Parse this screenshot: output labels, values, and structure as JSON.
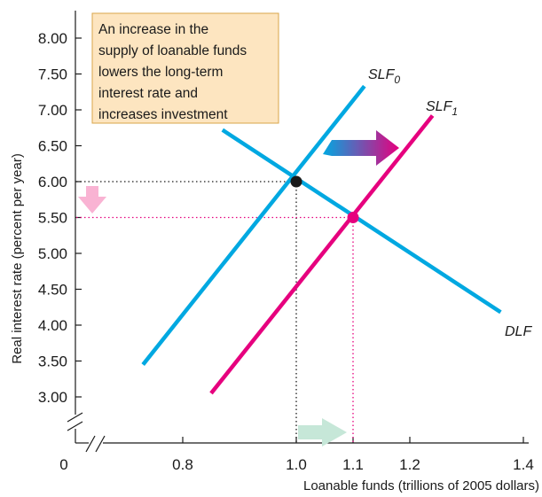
{
  "chart_data": {
    "type": "line",
    "xlabel": "Loanable funds (trillions of 2005 dollars)",
    "ylabel": "Real interest rate (percent per year)",
    "xlim": [
      0.6,
      1.4
    ],
    "ylim": [
      2.5,
      8.0
    ],
    "x_ticks": [
      {
        "value": 0.8,
        "label": "0.8"
      },
      {
        "value": 1.0,
        "label": "1.0"
      },
      {
        "value": 1.1,
        "label": "1.1",
        "highlight": true
      },
      {
        "value": 1.2,
        "label": "1.2"
      },
      {
        "value": 1.4,
        "label": "1.4"
      }
    ],
    "y_ticks": [
      {
        "value": 3.0,
        "label": "3.00"
      },
      {
        "value": 3.5,
        "label": "3.50"
      },
      {
        "value": 4.0,
        "label": "4.00"
      },
      {
        "value": 4.5,
        "label": "4.50"
      },
      {
        "value": 5.0,
        "label": "5.00"
      },
      {
        "value": 5.5,
        "label": "5.50",
        "highlight": true
      },
      {
        "value": 6.0,
        "label": "6.00"
      },
      {
        "value": 6.5,
        "label": "6.50"
      },
      {
        "value": 7.0,
        "label": "7.00"
      },
      {
        "value": 7.5,
        "label": "7.50"
      },
      {
        "value": 8.0,
        "label": "8.00"
      }
    ],
    "origin_label": "0",
    "series": [
      {
        "name": "SLF",
        "subscript": "0",
        "color": "#00a8e1",
        "points": [
          [
            0.73,
            3.45
          ],
          [
            1.12,
            7.33
          ]
        ]
      },
      {
        "name": "SLF",
        "subscript": "1",
        "color": "#e6007e",
        "points": [
          [
            0.85,
            3.05
          ],
          [
            1.24,
            6.92
          ]
        ]
      },
      {
        "name": "DLF",
        "subscript": "",
        "color": "#00a8e1",
        "points": [
          [
            0.87,
            6.72
          ],
          [
            1.36,
            4.18
          ]
        ]
      }
    ],
    "equilibria": [
      {
        "x": 1.0,
        "y": 6.0,
        "color": "#1a1a1a"
      },
      {
        "x": 1.1,
        "y": 5.5,
        "color": "#e6007e"
      }
    ],
    "annotation": {
      "lines": [
        "An increase in the",
        "supply of loanable funds",
        "lowers the long-term",
        "interest rate and",
        "increases investment"
      ],
      "background": "#fde5c0",
      "border": "#d9a54a"
    },
    "colors": {
      "blue": "#00a8e1",
      "magenta": "#e6007e",
      "pink_arrow": "#f9b3d3",
      "green_arrow": "#c6e7d8",
      "text": "#1a1a1a"
    }
  }
}
